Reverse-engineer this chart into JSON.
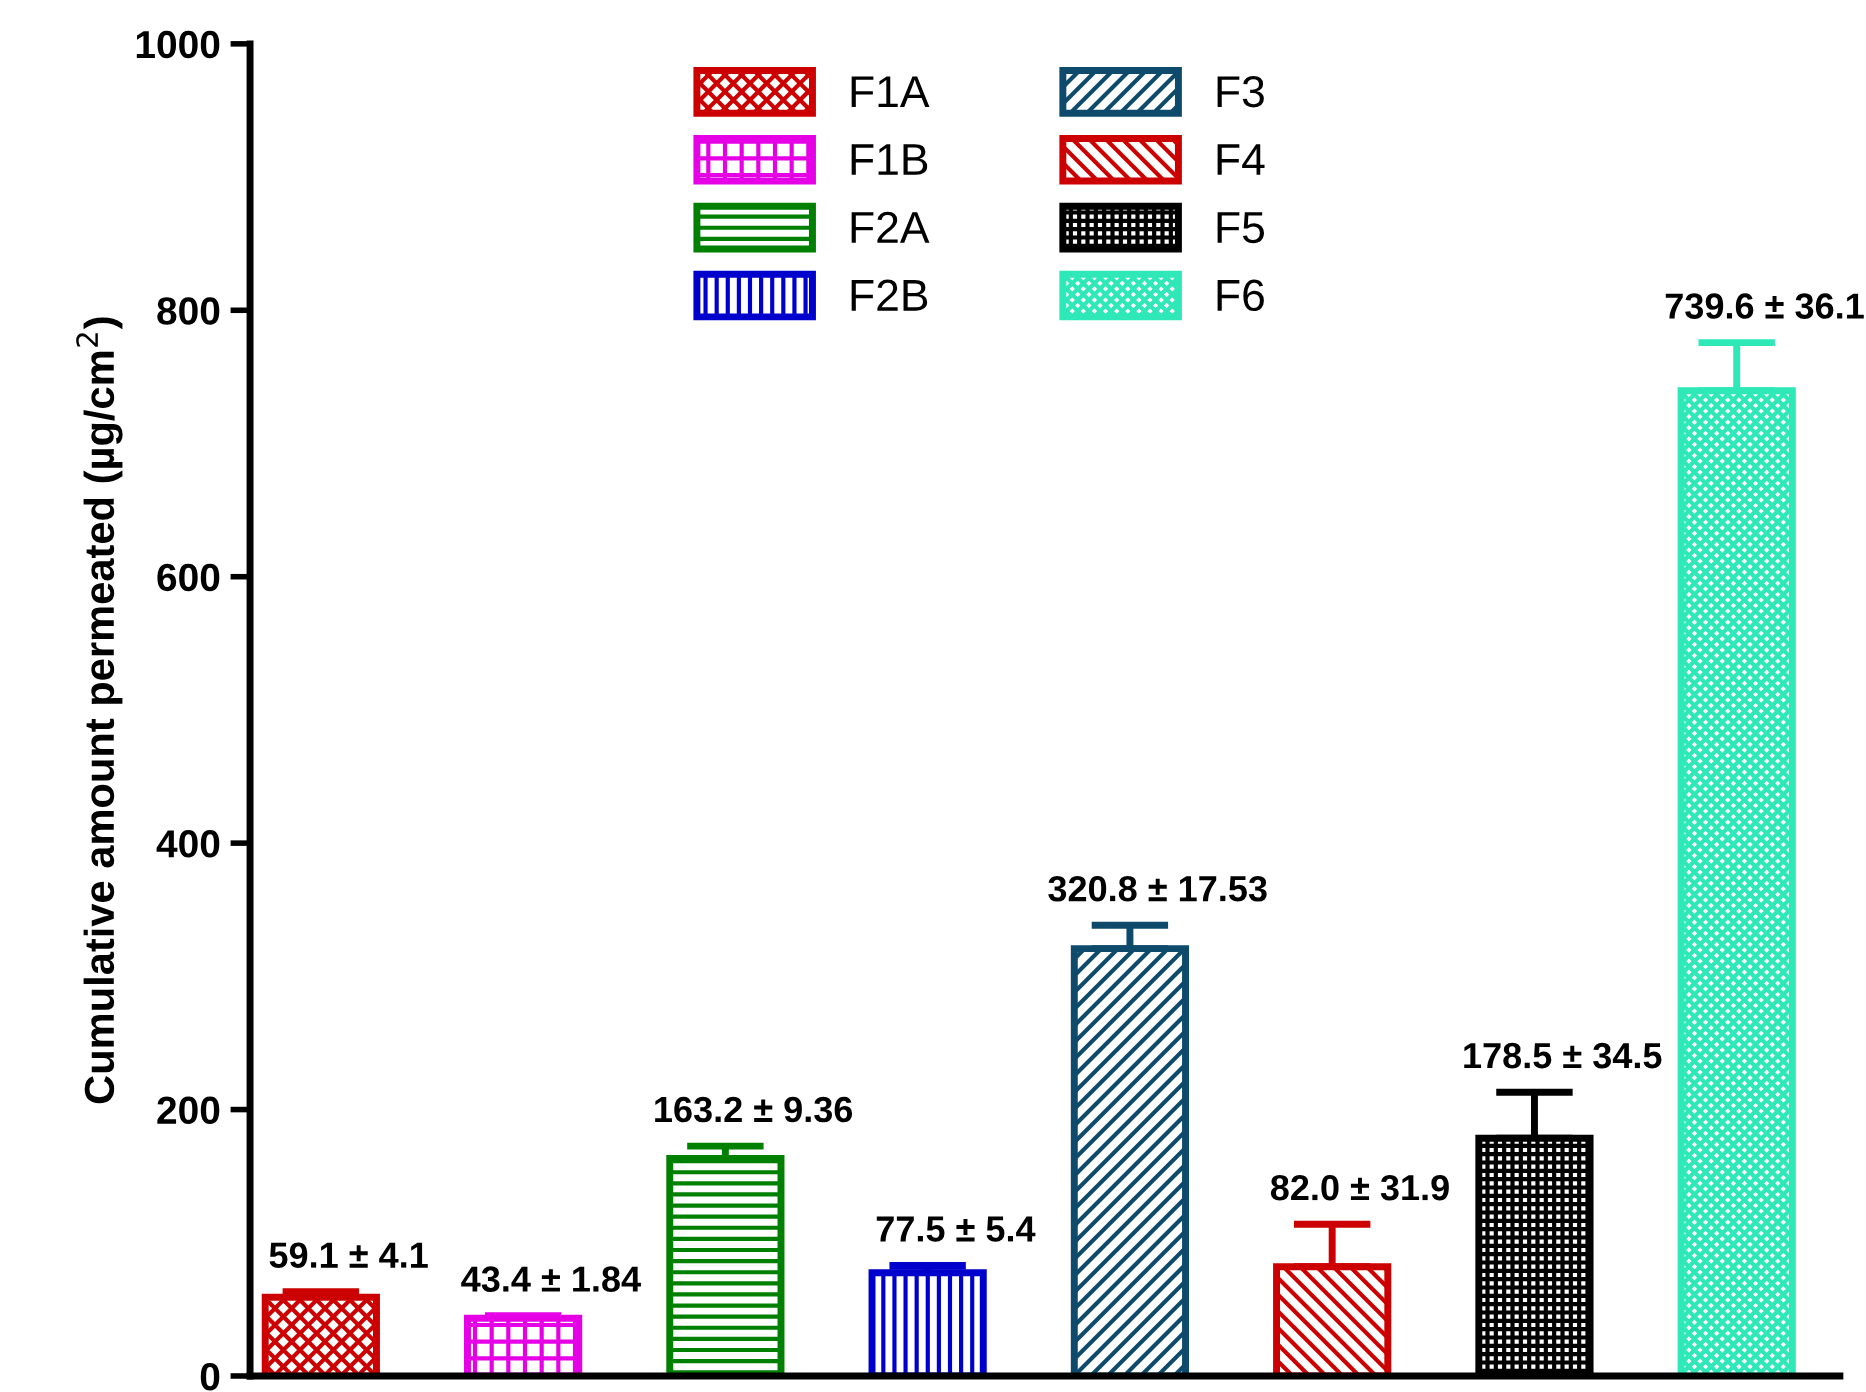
{
  "chart_data": {
    "type": "bar",
    "ylabel": "Cumulative amount permeated (µg/cm$^{2}$)",
    "categories": [
      null,
      null,
      null,
      null,
      null,
      null,
      null,
      null
    ],
    "ylim": [
      0,
      1000
    ],
    "yticks": [
      0,
      200,
      400,
      600,
      800,
      1000
    ],
    "grid": false,
    "legend": "top",
    "tick_labels": "y",
    "series": [
      {
        "name": "F1A",
        "color": "#cc0000",
        "values": [
          59.1,
          null,
          null,
          null,
          null,
          null,
          null,
          null
        ],
        "errors": [
          [
            59.1,
            63.2
          ],
          null,
          null,
          null,
          null,
          null,
          null,
          null
        ],
        "value_labels": [
          "59.1 ± 4.1",
          null,
          null,
          null,
          null,
          null,
          null,
          null
        ]
      },
      {
        "name": "F1B",
        "color": "#e600e6",
        "values": [
          null,
          43.4,
          null,
          null,
          null,
          null,
          null,
          null
        ],
        "errors": [
          null,
          [
            43.4,
            45.24
          ],
          null,
          null,
          null,
          null,
          null,
          null
        ],
        "value_labels": [
          null,
          "43.4 ± 1.84",
          null,
          null,
          null,
          null,
          null,
          null
        ]
      },
      {
        "name": "F2A",
        "color": "#008000",
        "values": [
          null,
          null,
          163.2,
          null,
          null,
          null,
          null,
          null
        ],
        "errors": [
          null,
          null,
          [
            163.2,
            172.56
          ],
          null,
          null,
          null,
          null,
          null
        ],
        "value_labels": [
          null,
          null,
          "163.2 ± 9.36",
          null,
          null,
          null,
          null,
          null
        ]
      },
      {
        "name": "F2B",
        "color": "#0000cc",
        "values": [
          null,
          null,
          null,
          77.5,
          null,
          null,
          null,
          null
        ],
        "errors": [
          null,
          null,
          null,
          [
            77.5,
            82.9
          ],
          null,
          null,
          null,
          null
        ],
        "value_labels": [
          null,
          null,
          null,
          "77.5 ± 5.4",
          null,
          null,
          null,
          null
        ]
      },
      {
        "name": "F3",
        "color": "#0d4a6b",
        "values": [
          null,
          null,
          null,
          null,
          320.8,
          null,
          null,
          null
        ],
        "errors": [
          null,
          null,
          null,
          null,
          [
            320.8,
            338.33
          ],
          null,
          null,
          null
        ],
        "value_labels": [
          null,
          null,
          null,
          null,
          "320.8 ± 17.53",
          null,
          null,
          null
        ]
      },
      {
        "name": "F4",
        "color": "#cc0000",
        "values": [
          null,
          null,
          null,
          null,
          null,
          82.0,
          null,
          null
        ],
        "errors": [
          null,
          null,
          null,
          null,
          null,
          [
            82.0,
            113.9
          ],
          null,
          null
        ],
        "value_labels": [
          null,
          null,
          null,
          null,
          null,
          "82.0 ± 31.9",
          null,
          null
        ]
      },
      {
        "name": "F5",
        "color": "#000000",
        "values": [
          null,
          null,
          null,
          null,
          null,
          null,
          178.5,
          null
        ],
        "errors": [
          null,
          null,
          null,
          null,
          null,
          null,
          [
            178.5,
            213.0
          ],
          null
        ],
        "value_labels": [
          null,
          null,
          null,
          null,
          null,
          null,
          "178.5 ± 34.5",
          null
        ]
      },
      {
        "name": "F6",
        "color": "#2ee8b8",
        "values": [
          null,
          null,
          null,
          null,
          null,
          null,
          null,
          739.6
        ],
        "errors": [
          null,
          null,
          null,
          null,
          null,
          null,
          null,
          [
            739.6,
            775.7
          ]
        ],
        "value_labels": [
          null,
          null,
          null,
          null,
          null,
          null,
          null,
          "739.6 ± 36.1"
        ]
      }
    ]
  }
}
